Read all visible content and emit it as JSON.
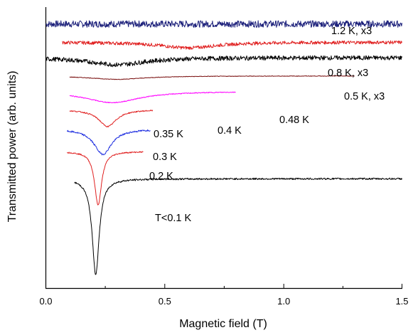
{
  "chart_data": {
    "type": "line",
    "title": "",
    "xlabel": "Magnetic field (T)",
    "ylabel": "Transmitted power (arb. units)",
    "xlim": [
      0,
      1.5
    ],
    "xticks": [
      "0.0",
      "0.5",
      "1.0",
      "1.5"
    ],
    "yticks_shown": false,
    "grid": false,
    "series": [
      {
        "name": "1.2 K, x3",
        "color": "#1b1f7a",
        "x_range": [
          0.0,
          1.5
        ],
        "min_field": null,
        "baseline": 0.94,
        "dip_depth": 0.0,
        "noise": 0.012
      },
      {
        "name": "0.8 K, x3",
        "color": "#e02020",
        "x_range": [
          0.07,
          1.5
        ],
        "min_field": 0.6,
        "baseline": 0.875,
        "dip_depth": 0.02,
        "noise": 0.006
      },
      {
        "name": "0.5 K, x3",
        "color": "#000000",
        "x_range": [
          0.0,
          1.5
        ],
        "min_field": 0.3,
        "baseline": 0.82,
        "dip_depth": 0.025,
        "noise": 0.008
      },
      {
        "name": "0.48 K",
        "color": "#7a1010",
        "x_range": [
          0.1,
          1.3
        ],
        "min_field": 0.3,
        "baseline": 0.755,
        "dip_depth": 0.012,
        "noise": 0.001
      },
      {
        "name": "0.4 K",
        "color": "#ff00ff",
        "x_range": [
          0.1,
          0.8
        ],
        "min_field": 0.28,
        "baseline": 0.7,
        "dip_depth": 0.04,
        "noise": 0.0015
      },
      {
        "name": "0.35 K",
        "color": "#e02020",
        "x_range": [
          0.1,
          0.45
        ],
        "min_field": 0.26,
        "baseline": 0.635,
        "dip_depth": 0.06,
        "noise": 0.002
      },
      {
        "name": "0.3 K",
        "color": "#1f2fe0",
        "x_range": [
          0.09,
          0.44
        ],
        "min_field": 0.24,
        "baseline": 0.566,
        "dip_depth": 0.09,
        "noise": 0.003
      },
      {
        "name": "0.2 K",
        "color": "#e02020",
        "x_range": [
          0.09,
          0.41
        ],
        "min_field": 0.22,
        "baseline": 0.486,
        "dip_depth": 0.19,
        "noise": 0.002
      },
      {
        "name": "T<0.1 K",
        "color": "#000000",
        "x_range": [
          0.12,
          1.5
        ],
        "min_field": 0.21,
        "baseline": 0.389,
        "dip_depth": 0.34,
        "noise": 0.003
      }
    ]
  }
}
